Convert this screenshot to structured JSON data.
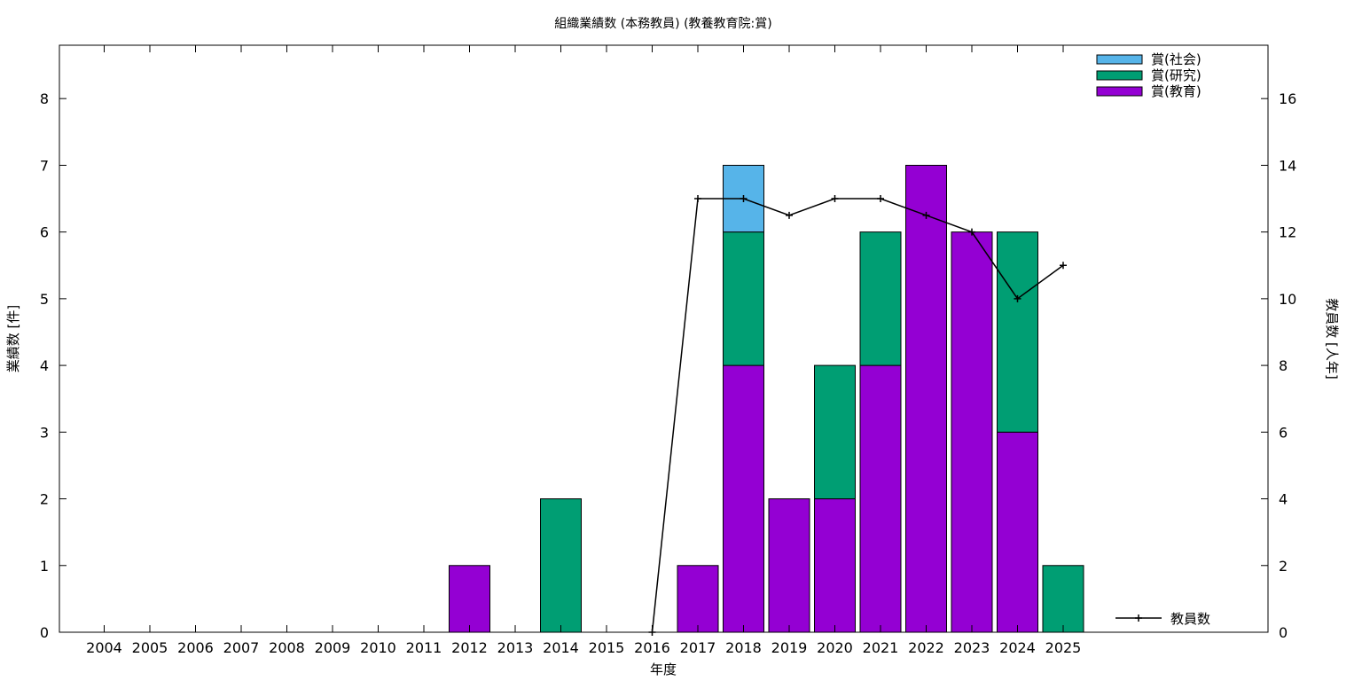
{
  "chart_data": {
    "type": "bar",
    "stacked": true,
    "title": "組織業績数 (本務教員) (教養教育院:賞)",
    "xlabel": "年度",
    "ylabel": "業績数 [件]",
    "y2label": "教員数 [人年]",
    "ylim": [
      0,
      8.8
    ],
    "y2lim": [
      0,
      17.6
    ],
    "yticks": [
      0,
      1,
      2,
      3,
      4,
      5,
      6,
      7,
      8
    ],
    "y2ticks": [
      0,
      2,
      4,
      6,
      8,
      10,
      12,
      14,
      16
    ],
    "categories": [
      "2004",
      "2005",
      "2006",
      "2007",
      "2008",
      "2009",
      "2010",
      "2011",
      "2012",
      "2013",
      "2014",
      "2015",
      "2016",
      "2017",
      "2018",
      "2019",
      "2020",
      "2021",
      "2022",
      "2023",
      "2024",
      "2025"
    ],
    "series": [
      {
        "name": "賞(教育)",
        "color": "#9400d3",
        "values": [
          0,
          0,
          0,
          0,
          0,
          0,
          0,
          0,
          1,
          0,
          0,
          0,
          0,
          1,
          4,
          2,
          2,
          4,
          7,
          6,
          3,
          0
        ]
      },
      {
        "name": "賞(研究)",
        "color": "#009e73",
        "values": [
          0,
          0,
          0,
          0,
          0,
          0,
          0,
          0,
          0,
          0,
          2,
          0,
          0,
          0,
          2,
          0,
          2,
          2,
          0,
          0,
          3,
          1
        ]
      },
      {
        "name": "賞(社会)",
        "color": "#56b4e9",
        "values": [
          0,
          0,
          0,
          0,
          0,
          0,
          0,
          0,
          0,
          0,
          0,
          0,
          0,
          0,
          1,
          0,
          0,
          0,
          0,
          0,
          0,
          0
        ]
      }
    ],
    "line_series": {
      "name": "教員数",
      "axis": "right",
      "color": "#000000",
      "x": [
        "2016",
        "2017",
        "2018",
        "2019",
        "2020",
        "2021",
        "2022",
        "2023",
        "2024",
        "2025"
      ],
      "values": [
        0,
        13,
        13,
        12.5,
        13,
        13,
        12.5,
        12,
        10,
        11
      ]
    },
    "legend_placement": "top-right",
    "grid": false
  }
}
